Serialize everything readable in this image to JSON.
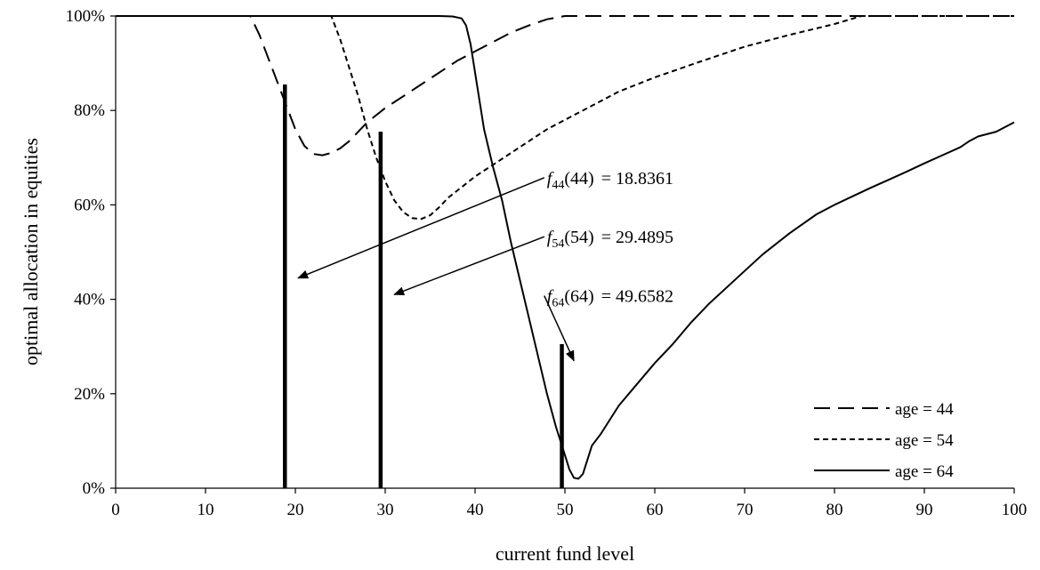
{
  "chart_data": {
    "type": "line",
    "title": "",
    "xlabel": "current fund level",
    "ylabel": "optimal allocation in equities",
    "xlim": [
      0,
      100
    ],
    "ylim": [
      0,
      100
    ],
    "x_ticks": [
      0,
      10,
      20,
      30,
      40,
      50,
      60,
      70,
      80,
      90,
      100
    ],
    "y_ticks": [
      0,
      20,
      40,
      60,
      80,
      100
    ],
    "x_tick_labels": [
      "0",
      "10",
      "20",
      "30",
      "40",
      "50",
      "60",
      "70",
      "80",
      "90",
      "100"
    ],
    "y_tick_labels": [
      "0%",
      "20%",
      "40%",
      "60%",
      "80%",
      "100%"
    ],
    "grid": false,
    "legend_position": "right",
    "series": [
      {
        "name": "age = 44",
        "style": "long-dash",
        "points": [
          [
            0,
            100
          ],
          [
            10,
            100
          ],
          [
            15,
            100
          ],
          [
            16,
            96
          ],
          [
            17,
            91
          ],
          [
            18,
            86
          ],
          [
            19,
            81
          ],
          [
            20,
            76
          ],
          [
            21,
            72.5
          ],
          [
            22,
            70.8
          ],
          [
            23,
            70.5
          ],
          [
            24,
            71
          ],
          [
            25,
            72
          ],
          [
            26,
            73.5
          ],
          [
            27,
            75.5
          ],
          [
            28,
            77.5
          ],
          [
            29,
            79
          ],
          [
            30,
            80.5
          ],
          [
            32,
            83
          ],
          [
            34,
            85.5
          ],
          [
            36,
            88
          ],
          [
            38,
            90.5
          ],
          [
            40,
            92.5
          ],
          [
            42,
            94.5
          ],
          [
            44,
            96.5
          ],
          [
            46,
            98
          ],
          [
            48,
            99.3
          ],
          [
            50,
            100
          ],
          [
            55,
            100
          ],
          [
            60,
            100
          ],
          [
            70,
            100
          ],
          [
            80,
            100
          ],
          [
            90,
            100
          ],
          [
            100,
            100
          ]
        ]
      },
      {
        "name": "age = 54",
        "style": "short-dash",
        "points": [
          [
            0,
            100
          ],
          [
            10,
            100
          ],
          [
            20,
            100
          ],
          [
            24,
            100
          ],
          [
            25,
            95
          ],
          [
            26,
            89
          ],
          [
            27,
            83
          ],
          [
            28,
            76
          ],
          [
            29,
            70
          ],
          [
            30,
            65
          ],
          [
            31,
            61
          ],
          [
            32,
            58.5
          ],
          [
            33,
            57.2
          ],
          [
            34,
            57
          ],
          [
            35,
            57.8
          ],
          [
            36,
            59.5
          ],
          [
            37,
            61.5
          ],
          [
            38,
            63
          ],
          [
            39,
            64.5
          ],
          [
            40,
            66
          ],
          [
            42,
            68.5
          ],
          [
            44,
            71
          ],
          [
            46,
            73.5
          ],
          [
            48,
            76
          ],
          [
            50,
            78
          ],
          [
            52,
            80
          ],
          [
            54,
            82
          ],
          [
            56,
            84
          ],
          [
            58,
            85.5
          ],
          [
            60,
            87
          ],
          [
            65,
            90.3
          ],
          [
            70,
            93.5
          ],
          [
            75,
            96
          ],
          [
            80,
            98.3
          ],
          [
            83,
            100
          ],
          [
            90,
            100
          ],
          [
            100,
            100
          ]
        ]
      },
      {
        "name": "age = 64",
        "style": "solid",
        "points": [
          [
            0,
            100
          ],
          [
            10,
            100
          ],
          [
            20,
            100
          ],
          [
            30,
            100
          ],
          [
            36,
            100
          ],
          [
            37.5,
            99.9
          ],
          [
            38.5,
            99.5
          ],
          [
            39,
            98
          ],
          [
            39.5,
            94
          ],
          [
            40,
            88
          ],
          [
            41,
            76
          ],
          [
            42,
            68
          ],
          [
            43,
            61
          ],
          [
            44,
            52
          ],
          [
            45,
            44
          ],
          [
            46,
            36
          ],
          [
            47,
            28
          ],
          [
            48,
            20
          ],
          [
            49,
            13
          ],
          [
            50,
            7
          ],
          [
            50.5,
            4
          ],
          [
            51,
            2.2
          ],
          [
            51.5,
            2
          ],
          [
            52,
            3
          ],
          [
            52.5,
            6
          ],
          [
            53,
            9
          ],
          [
            54,
            11.5
          ],
          [
            55,
            14.5
          ],
          [
            56,
            17.5
          ],
          [
            58,
            22
          ],
          [
            60,
            26.5
          ],
          [
            62,
            30.5
          ],
          [
            64,
            35
          ],
          [
            66,
            39
          ],
          [
            68,
            42.5
          ],
          [
            70,
            46
          ],
          [
            72,
            49.5
          ],
          [
            75,
            54
          ],
          [
            78,
            58
          ],
          [
            80,
            60
          ],
          [
            82,
            61.8
          ],
          [
            84,
            63.6
          ],
          [
            86,
            65.3
          ],
          [
            88,
            67
          ],
          [
            90,
            68.8
          ],
          [
            92,
            70.5
          ],
          [
            94,
            72.2
          ],
          [
            95,
            73.5
          ],
          [
            96,
            74.5
          ],
          [
            98,
            75.5
          ],
          [
            100,
            77.5
          ]
        ]
      }
    ],
    "vertical_bars": [
      {
        "x": 18.8361,
        "y_top": 85.5
      },
      {
        "x": 29.4895,
        "y_top": 75.5
      },
      {
        "x": 49.6582,
        "y_top": 30.5
      }
    ],
    "annotations": [
      {
        "sub": "44",
        "arg": "(44)",
        "value": "= 18.8361",
        "text_at": [
          48,
          65
        ],
        "arrow_to": [
          20.3,
          44.5
        ]
      },
      {
        "sub": "54",
        "arg": "(54)",
        "value": "= 29.4895",
        "text_at": [
          48,
          52.5
        ],
        "arrow_to": [
          31,
          41
        ]
      },
      {
        "sub": "64",
        "arg": "(64)",
        "value": "= 49.6582",
        "text_at": [
          48,
          40
        ],
        "arrow_to": [
          51,
          27
        ]
      }
    ],
    "annotation_symbol": "f"
  }
}
